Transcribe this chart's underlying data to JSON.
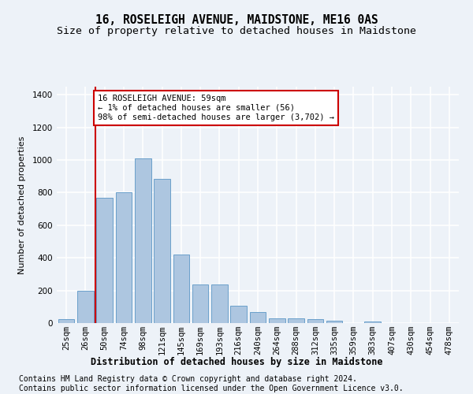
{
  "title": "16, ROSELEIGH AVENUE, MAIDSTONE, ME16 0AS",
  "subtitle": "Size of property relative to detached houses in Maidstone",
  "xlabel": "Distribution of detached houses by size in Maidstone",
  "ylabel": "Number of detached properties",
  "categories": [
    "25sqm",
    "26sqm",
    "50sqm",
    "74sqm",
    "98sqm",
    "121sqm",
    "145sqm",
    "169sqm",
    "193sqm",
    "216sqm",
    "240sqm",
    "264sqm",
    "288sqm",
    "312sqm",
    "335sqm",
    "359sqm",
    "383sqm",
    "407sqm",
    "430sqm",
    "454sqm",
    "478sqm"
  ],
  "values": [
    22,
    200,
    770,
    800,
    1010,
    885,
    420,
    235,
    235,
    108,
    68,
    28,
    28,
    22,
    14,
    0,
    12,
    0,
    0,
    0,
    0
  ],
  "bar_color": "#adc6e0",
  "bar_edge_color": "#6aa0cb",
  "vline_x_index": 2,
  "annotation_line1": "16 ROSELEIGH AVENUE: 59sqm",
  "annotation_line2": "← 1% of detached houses are smaller (56)",
  "annotation_line3": "98% of semi-detached houses are larger (3,702) →",
  "vline_color": "#cc0000",
  "annotation_box_edge": "#cc0000",
  "footer1": "Contains HM Land Registry data © Crown copyright and database right 2024.",
  "footer2": "Contains public sector information licensed under the Open Government Licence v3.0.",
  "ylim": [
    0,
    1450
  ],
  "yticks": [
    0,
    200,
    400,
    600,
    800,
    1000,
    1200,
    1400
  ],
  "background_color": "#edf2f8",
  "plot_bg_color": "#edf2f8",
  "grid_color": "#ffffff",
  "title_fontsize": 10.5,
  "subtitle_fontsize": 9.5,
  "axis_label_fontsize": 8,
  "tick_fontsize": 7.5,
  "footer_fontsize": 7,
  "annotation_fontsize": 7.5
}
